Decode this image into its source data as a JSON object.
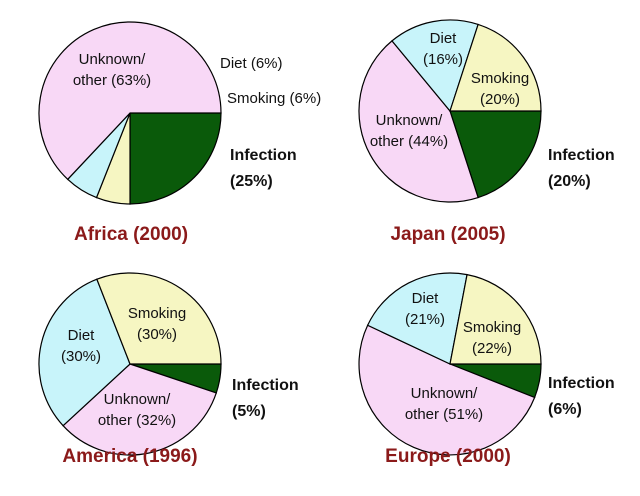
{
  "colors": {
    "unknown": "#f8d8f6",
    "diet": "#c8f4fa",
    "smoking": "#f6f6c2",
    "infection": "#0a5a0a",
    "title": "#8b1a1a"
  },
  "chart_data": [
    {
      "type": "pie",
      "title": "Africa (2000)",
      "slices": [
        {
          "name": "Infection",
          "value": 25,
          "label_lines": [
            "Infection",
            "(25%)"
          ]
        },
        {
          "name": "Smoking",
          "value": 6,
          "label_lines": [
            "Smoking (6%)"
          ]
        },
        {
          "name": "Diet",
          "value": 6,
          "label_lines": [
            "Diet (6%)"
          ]
        },
        {
          "name": "Unknown/other",
          "value": 63,
          "label_lines": [
            "Unknown/",
            "other (63%)"
          ]
        }
      ]
    },
    {
      "type": "pie",
      "title": "Japan (2005)",
      "slices": [
        {
          "name": "Infection",
          "value": 20,
          "label_lines": [
            "Infection",
            "(20%)"
          ]
        },
        {
          "name": "Unknown/other",
          "value": 44,
          "label_lines": [
            "Unknown/",
            "other (44%)"
          ]
        },
        {
          "name": "Diet",
          "value": 16,
          "label_lines": [
            "Diet",
            "(16%)"
          ]
        },
        {
          "name": "Smoking",
          "value": 20,
          "label_lines": [
            "Smoking",
            "(20%)"
          ]
        }
      ]
    },
    {
      "type": "pie",
      "title": "America (1996)",
      "slices": [
        {
          "name": "Infection",
          "value": 5,
          "label_lines": [
            "Infection",
            "(5%)"
          ]
        },
        {
          "name": "Unknown/other",
          "value": 32,
          "label_lines": [
            "Unknown/",
            "other (32%)"
          ]
        },
        {
          "name": "Diet",
          "value": 30,
          "label_lines": [
            "Diet",
            "(30%)"
          ]
        },
        {
          "name": "Smoking",
          "value": 30,
          "label_lines": [
            "Smoking",
            "(30%)"
          ]
        }
      ]
    },
    {
      "type": "pie",
      "title": "Europe (2000)",
      "slices": [
        {
          "name": "Infection",
          "value": 6,
          "label_lines": [
            "Infection",
            "(6%)"
          ]
        },
        {
          "name": "Unknown/other",
          "value": 51,
          "label_lines": [
            "Unknown/",
            "other (51%)"
          ]
        },
        {
          "name": "Diet",
          "value": 21,
          "label_lines": [
            "Diet",
            "(21%)"
          ]
        },
        {
          "name": "Smoking",
          "value": 22,
          "label_lines": [
            "Smoking",
            "(22%)"
          ]
        }
      ]
    }
  ]
}
